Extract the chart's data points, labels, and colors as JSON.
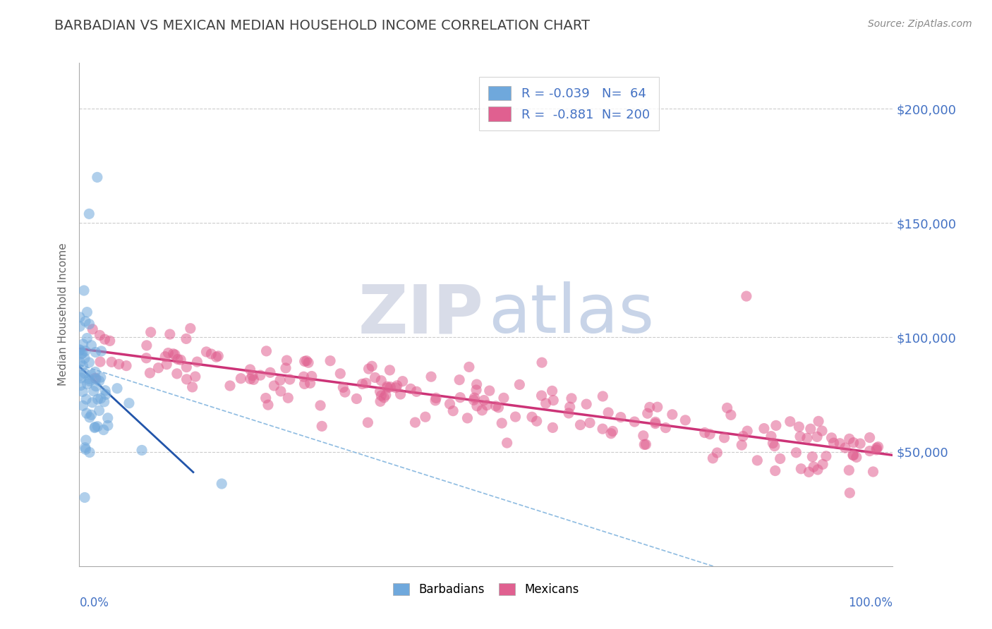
{
  "title": "BARBADIAN VS MEXICAN MEDIAN HOUSEHOLD INCOME CORRELATION CHART",
  "source": "Source: ZipAtlas.com",
  "ylabel": "Median Household Income",
  "ytick_labels": [
    "$50,000",
    "$100,000",
    "$150,000",
    "$200,000"
  ],
  "ytick_values": [
    50000,
    100000,
    150000,
    200000
  ],
  "ymin": 0,
  "ymax": 220000,
  "xmin": 0.0,
  "xmax": 1.0,
  "barbadian_R": -0.039,
  "barbadian_N": 64,
  "mexican_R": -0.881,
  "mexican_N": 200,
  "barbadian_color": "#6fa8dc",
  "mexican_color": "#e06090",
  "trendline_barbadian_dashed_color": "#7ab0dc",
  "trendline_barbadian_solid_color": "#2255aa",
  "trendline_mexican_color": "#cc3377",
  "background_color": "#ffffff",
  "grid_color": "#cccccc",
  "title_color": "#404040",
  "axis_label_color": "#4472c4",
  "watermark_zip_color": "#d8dce8",
  "watermark_atlas_color": "#c8d4e8",
  "legend_text_color": "#4472c4"
}
